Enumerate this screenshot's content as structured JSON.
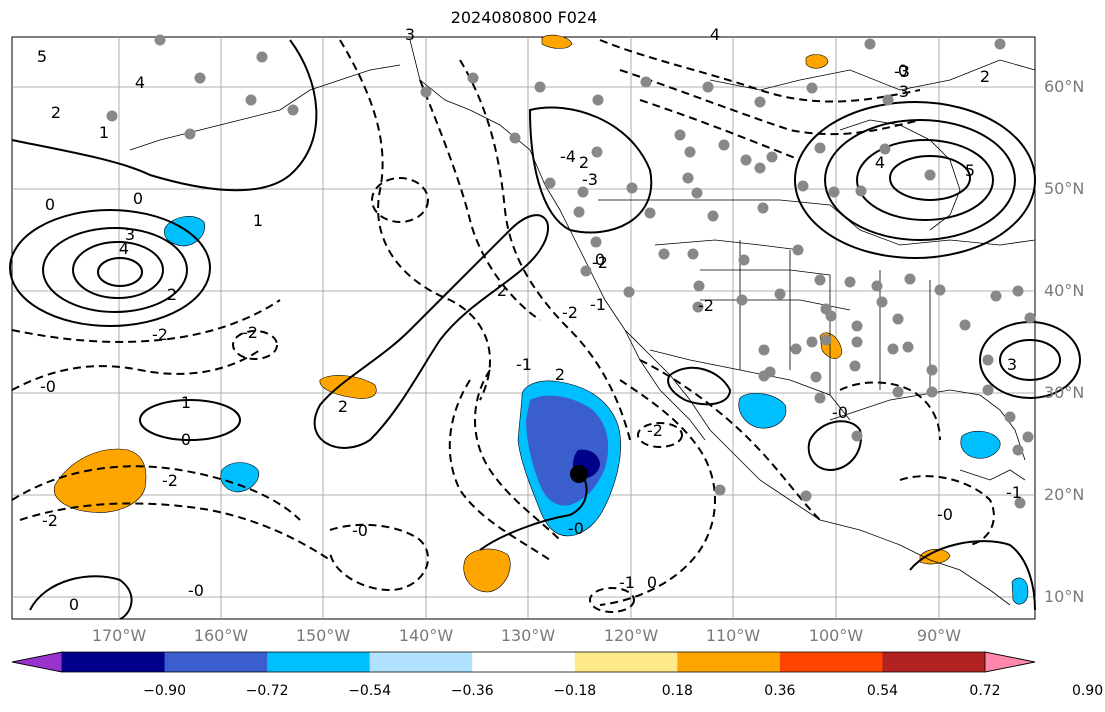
{
  "title": "2024080800 F024",
  "lat_ticks": [
    "60°N",
    "50°N",
    "40°N",
    "30°N",
    "20°N",
    "10°N"
  ],
  "lon_ticks": [
    "170°W",
    "160°W",
    "150°W",
    "140°W",
    "130°W",
    "120°W",
    "110°W",
    "100°W",
    "90°W"
  ],
  "colorbar": {
    "colors": [
      "#9a32cd",
      "#00008b",
      "#3a5fcd",
      "#00bfff",
      "#b0e2ff",
      "#ffffff",
      "#fee98b",
      "#ffa500",
      "#ff4500",
      "#b22222",
      "#ff88aa"
    ],
    "labels": [
      "−0.90",
      "−0.72",
      "−0.54",
      "−0.36",
      "−0.18",
      "0.18",
      "0.36",
      "0.54",
      "0.72",
      "0.90"
    ]
  },
  "contour_labels": [
    "5",
    "4",
    "2",
    "1",
    "0",
    "3",
    "4",
    "2",
    "0",
    "-4",
    "-3",
    "-2",
    "-2",
    "3",
    "4",
    "2",
    "1",
    "2",
    "0",
    "-2",
    "3",
    "4",
    "5",
    "-2",
    "-0",
    "-0",
    "1",
    "0",
    "-2",
    "2",
    "-2",
    "-1",
    "-0",
    "0",
    "-2",
    "2",
    "-0",
    "-0",
    "-1",
    "0",
    "-0",
    "-1",
    "2",
    "0",
    "-1",
    "-2",
    "-3",
    "3"
  ],
  "marker_color": "#000000",
  "station_color": "#888888",
  "shading_colors": {
    "orange": "#ffa500",
    "blue_light": "#00bfff",
    "blue_mid": "#3a5fcd",
    "blue_dark": "#00008b"
  }
}
